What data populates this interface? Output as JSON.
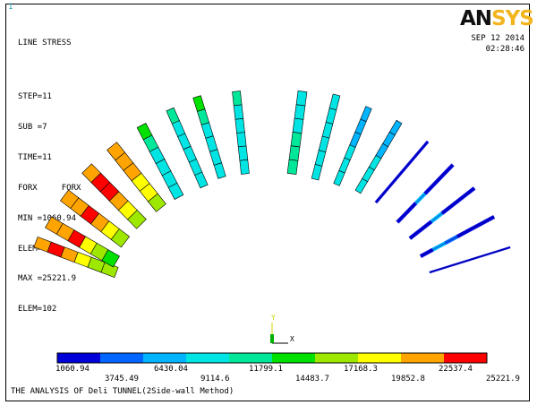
{
  "window_number": "1",
  "logo": {
    "main": "AN",
    "accent": "SYS"
  },
  "info_lines": [
    "LINE STRESS",
    "STEP=11",
    "SUB =7",
    "TIME=11",
    "FORX     FORX",
    "MIN =1060.94",
    "ELEM=121",
    "MAX =25221.9",
    "ELEM=102"
  ],
  "date": "SEP 12 2014",
  "time": "02:28:46",
  "legend": {
    "colors": [
      "#0000d8",
      "#0066ff",
      "#00b4ff",
      "#00e4e4",
      "#00e79a",
      "#00e100",
      "#9ee800",
      "#ffff00",
      "#ffa400",
      "#ff0000"
    ],
    "labels_top": [
      "1060.94",
      "6430.04",
      "11799.1",
      "17168.3",
      "22537.4"
    ],
    "labels_bottom": [
      "3745.49",
      "9114.6",
      "14483.7",
      "19852.8",
      "25221.9"
    ]
  },
  "triad": {
    "y": "Y",
    "x": "X",
    "z": "Z"
  },
  "footer": "THE ANALYSIS OF Deli TUNNEL(2Side-wall Method)"
}
